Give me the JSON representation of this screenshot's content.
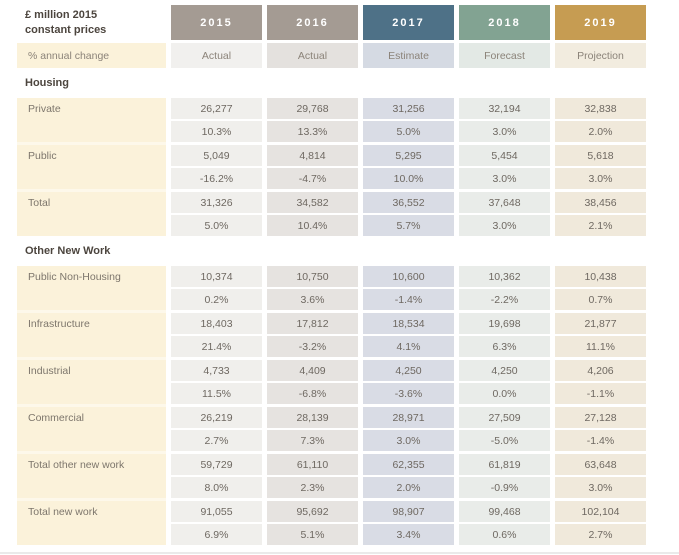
{
  "table": {
    "title_line1": "£ million 2015",
    "title_line2": "constant prices",
    "subheader_label": "% annual change",
    "columns": [
      {
        "year": "2015",
        "status": "Actual",
        "header_bg": "#a49b93",
        "sub_bg": "#f1f0ee",
        "cell_bg": "#f0efec"
      },
      {
        "year": "2016",
        "status": "Actual",
        "header_bg": "#a49b93",
        "sub_bg": "#e4e1de",
        "cell_bg": "#e6e3e0"
      },
      {
        "year": "2017",
        "status": "Estimate",
        "header_bg": "#4e7187",
        "sub_bg": "#d5dae3",
        "cell_bg": "#d9dce5"
      },
      {
        "year": "2018",
        "status": "Forecast",
        "header_bg": "#82a392",
        "sub_bg": "#e3e9e5",
        "cell_bg": "#e9ece9"
      },
      {
        "year": "2019",
        "status": "Projection",
        "header_bg": "#c69c52",
        "sub_bg": "#f2ecdf",
        "cell_bg": "#f0e9db"
      }
    ],
    "sections": [
      {
        "title": "Housing",
        "rows": [
          {
            "label": "Private",
            "values": [
              "26,277",
              "29,768",
              "31,256",
              "32,194",
              "32,838"
            ],
            "changes": [
              "10.3%",
              "13.3%",
              "5.0%",
              "3.0%",
              "2.0%"
            ]
          },
          {
            "label": "Public",
            "values": [
              "5,049",
              "4,814",
              "5,295",
              "5,454",
              "5,618"
            ],
            "changes": [
              "-16.2%",
              "-4.7%",
              "10.0%",
              "3.0%",
              "3.0%"
            ]
          },
          {
            "label": "Total",
            "values": [
              "31,326",
              "34,582",
              "36,552",
              "37,648",
              "38,456"
            ],
            "changes": [
              "5.0%",
              "10.4%",
              "5.7%",
              "3.0%",
              "2.1%"
            ]
          }
        ]
      },
      {
        "title": "Other New Work",
        "rows": [
          {
            "label": "Public Non-Housing",
            "values": [
              "10,374",
              "10,750",
              "10,600",
              "10,362",
              "10,438"
            ],
            "changes": [
              "0.2%",
              "3.6%",
              "-1.4%",
              "-2.2%",
              "0.7%"
            ]
          },
          {
            "label": "Infrastructure",
            "values": [
              "18,403",
              "17,812",
              "18,534",
              "19,698",
              "21,877"
            ],
            "changes": [
              "21.4%",
              "-3.2%",
              "4.1%",
              "6.3%",
              "11.1%"
            ]
          },
          {
            "label": "Industrial",
            "values": [
              "4,733",
              "4,409",
              "4,250",
              "4,250",
              "4,206"
            ],
            "changes": [
              "11.5%",
              "-6.8%",
              "-3.6%",
              "0.0%",
              "-1.1%"
            ]
          },
          {
            "label": "Commercial",
            "values": [
              "26,219",
              "28,139",
              "28,971",
              "27,509",
              "27,128"
            ],
            "changes": [
              "2.7%",
              "7.3%",
              "3.0%",
              "-5.0%",
              "-1.4%"
            ]
          },
          {
            "label": "Total other new work",
            "values": [
              "59,729",
              "61,110",
              "62,355",
              "61,819",
              "63,648"
            ],
            "changes": [
              "8.0%",
              "2.3%",
              "2.0%",
              "-0.9%",
              "3.0%"
            ]
          },
          {
            "label": "Total new work",
            "values": [
              "91,055",
              "95,692",
              "98,907",
              "99,468",
              "102,104"
            ],
            "changes": [
              "6.9%",
              "5.1%",
              "3.4%",
              "0.6%",
              "2.7%"
            ]
          }
        ]
      }
    ],
    "colors": {
      "header_text": "#ffffff",
      "title_text": "#4c453e",
      "section_text": "#4c453e",
      "label_text": "#7d766c",
      "sub_text": "#8b8379",
      "value_text": "#6e6861",
      "label_bg": "#fbf2da",
      "label_gap": "#fdf8ea",
      "page_bg": "#ffffff",
      "divider": "#eaeaea"
    }
  }
}
